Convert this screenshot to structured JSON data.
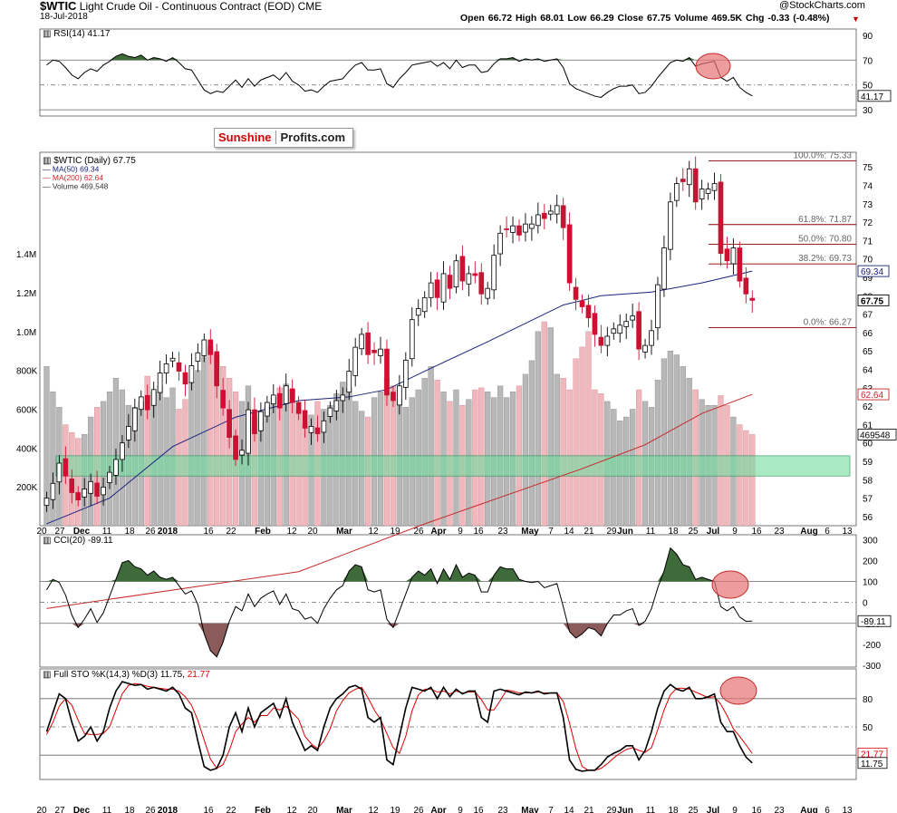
{
  "header": {
    "title_symbol": "$WTIC",
    "title_rest": "Light Crude Oil - Continuous Contract (EOD)",
    "exchange": "CME",
    "date": "18-Jul-2018",
    "quote": "Open 66.72  High 68.01  Low 66.29  Close 67.75  Volume 469.5K  Chg -0.33 (-0.48%)",
    "brand": "@StockCharts.com"
  },
  "logo": {
    "part1": "Sunshine",
    "part2": "Profits.com"
  },
  "colors": {
    "up": "#000000",
    "down": "#cc1133",
    "ma50": "#1a237e",
    "ma200": "#c62828",
    "zone": "#6fdc9f",
    "oscfill_pos": "#3f6b3a",
    "oscfill_neg": "#8b5a5a",
    "highlight": "#e57373"
  },
  "x_axis_labels": [
    "20",
    "27",
    "Dec",
    "11",
    "18",
    "26",
    "2018",
    "16",
    "22",
    "Feb",
    "12",
    "20",
    "Mar",
    "12",
    "19",
    "26",
    "Apr",
    "9",
    "16",
    "23",
    "May",
    "7",
    "14",
    "21",
    "29",
    "Jun",
    "11",
    "18",
    "25",
    "Jul",
    "9",
    "16",
    "23",
    "Aug",
    "6",
    "13"
  ],
  "rsi_panel": {
    "label": "RSI(14) 41.17",
    "axis_labels": [
      "90",
      "70",
      "50",
      "30"
    ],
    "value_tag": "41.17"
  },
  "price_panel": {
    "legend": [
      "$WTIC (Daily) 67.75",
      "MA(50) 69.34",
      "MA(200) 62.64",
      "Volume 469,548"
    ],
    "axis_labels": [
      "75",
      "74",
      "73",
      "72",
      "71",
      "70",
      "69",
      "68",
      "67",
      "66",
      "65",
      "64",
      "63",
      "62",
      "61",
      "60",
      "59",
      "58",
      "57",
      "56"
    ],
    "volume_labels": [
      "1.4M",
      "1.2M",
      "1.0M",
      "800K",
      "600K",
      "400K",
      "200K"
    ],
    "fib_labels": [
      "100.0%: 75.33",
      "61.8%: 71.87",
      "50.0%: 70.80",
      "38.2%: 69.73",
      "0.0%: 66.27"
    ],
    "tags": {
      "ma50": "69.34",
      "close": "67.75",
      "ma200": "62.64",
      "volume": "469548"
    }
  },
  "cci_panel": {
    "label": "CCI(20) -89.11",
    "axis_labels": [
      "300",
      "200",
      "100",
      "0",
      "-100",
      "-200",
      "-300"
    ],
    "value_tag": "-89.11"
  },
  "sto_panel": {
    "label_black": "Full STO %K(14,3) %D(3) 11.75,",
    "label_red": "21.77",
    "axis_labels": [
      "80",
      "50",
      "20"
    ],
    "tags": {
      "k": "11.75",
      "d": "21.77"
    }
  },
  "chart_data": {
    "type": "candlestick",
    "title": "$WTIC Light Crude Oil - Continuous Contract (EOD)",
    "last_bar": {
      "date": "18-Jul-2018",
      "open": 66.72,
      "high": 68.01,
      "low": 66.29,
      "close": 67.75,
      "volume": 469548,
      "change": -0.33,
      "change_pct": -0.48
    },
    "price_ylim": [
      55.5,
      75.8
    ],
    "close_series": [
      57.0,
      57.8,
      58.9,
      58.2,
      57.3,
      56.9,
      57.5,
      57.9,
      57.1,
      57.6,
      58.4,
      59.1,
      60.0,
      60.9,
      61.9,
      62.5,
      61.8,
      62.9,
      63.8,
      64.3,
      64.6,
      63.9,
      63.2,
      64.2,
      64.9,
      65.6,
      64.8,
      63.1,
      61.9,
      60.3,
      59.1,
      59.6,
      61.8,
      60.5,
      61.7,
      62.2,
      62.6,
      61.9,
      63.1,
      62.2,
      61.6,
      60.8,
      60.9,
      60.5,
      61.2,
      61.9,
      62.3,
      62.6,
      63.9,
      65.2,
      65.9,
      64.8,
      64.9,
      65.1,
      62.6,
      62.3,
      63.1,
      64.5,
      66.7,
      67.3,
      67.9,
      68.7,
      67.9,
      69.2,
      68.4,
      69.9,
      68.8,
      69.2,
      69.1,
      68.1,
      68.4,
      70.2,
      71.4,
      71.6,
      71.8,
      71.3,
      71.9,
      71.9,
      72.4,
      72.2,
      72.6,
      72.9,
      71.7,
      68.7,
      67.8,
      67.4,
      66.8,
      65.9,
      65.3,
      65.8,
      66.2,
      66.4,
      66.6,
      66.9,
      65.1,
      65.3,
      66.1,
      68.6,
      70.6,
      73.1,
      74.1,
      74.2,
      74.9,
      73.1,
      73.8,
      73.8,
      74.1,
      70.3,
      69.9,
      70.6,
      68.8,
      68.1,
      67.75
    ],
    "ma50": [
      [
        0,
        55.6
      ],
      [
        10,
        57.0
      ],
      [
        20,
        59.8
      ],
      [
        30,
        61.4
      ],
      [
        40,
        62.3
      ],
      [
        48,
        62.5
      ],
      [
        54,
        62.9
      ],
      [
        60,
        63.9
      ],
      [
        70,
        65.5
      ],
      [
        82,
        67.5
      ],
      [
        88,
        68.0
      ],
      [
        96,
        68.2
      ],
      [
        104,
        68.7
      ],
      [
        112,
        69.34
      ]
    ],
    "ma200": [
      [
        0,
        51.0
      ],
      [
        40,
        53.0
      ],
      [
        60,
        55.6
      ],
      [
        75,
        57.4
      ],
      [
        85,
        58.6
      ],
      [
        95,
        59.9
      ],
      [
        104,
        61.6
      ],
      [
        112,
        62.64
      ]
    ],
    "fibonacci": {
      "100.0%": 75.33,
      "61.8%": 71.87,
      "50.0%": 70.8,
      "38.2%": 69.73,
      "0.0%": 66.27
    },
    "support_zone": [
      58.2,
      59.3
    ],
    "volume_ylim": [
      0,
      1500000
    ],
    "volume": [
      820000,
      690000,
      610000,
      520000,
      480000,
      450000,
      470000,
      560000,
      610000,
      640000,
      690000,
      760000,
      700000,
      620000,
      610000,
      640000,
      770000,
      690000,
      720000,
      660000,
      710000,
      600000,
      650000,
      740000,
      800000,
      870000,
      920000,
      880000,
      820000,
      760000,
      690000,
      640000,
      720000,
      560000,
      590000,
      620000,
      660000,
      710000,
      730000,
      700000,
      600000,
      520000,
      570000,
      640000,
      600000,
      620000,
      680000,
      740000,
      710000,
      640000,
      590000,
      560000,
      660000,
      690000,
      760000,
      720000,
      650000,
      610000,
      660000,
      700000,
      760000,
      820000,
      750000,
      690000,
      640000,
      700000,
      620000,
      650000,
      700000,
      710000,
      690000,
      660000,
      720000,
      660000,
      690000,
      720000,
      780000,
      850000,
      1000000,
      1050000,
      1020000,
      780000,
      760000,
      700000,
      860000,
      920000,
      1000000,
      700000,
      680000,
      640000,
      600000,
      540000,
      560000,
      600000,
      700000,
      640000,
      610000,
      750000,
      860000,
      900000,
      880000,
      820000,
      760000,
      700000,
      650000,
      620000,
      620000,
      670000,
      620000,
      560000,
      520000,
      490000,
      469548
    ],
    "rsi_ylim": [
      25,
      95
    ],
    "rsi": [
      66,
      70,
      69,
      64,
      58,
      55,
      60,
      63,
      61,
      66,
      69,
      73,
      75,
      73,
      72,
      74,
      70,
      72,
      71,
      69,
      72,
      68,
      63,
      62,
      54,
      46,
      43,
      45,
      44,
      49,
      54,
      48,
      55,
      49,
      54,
      56,
      58,
      54,
      60,
      53,
      50,
      45,
      46,
      44,
      49,
      53,
      54,
      55,
      61,
      66,
      68,
      62,
      62,
      63,
      51,
      48,
      55,
      60,
      66,
      67,
      68,
      69,
      65,
      68,
      63,
      70,
      64,
      66,
      66,
      60,
      61,
      67,
      71,
      71,
      72,
      69,
      71,
      70,
      71,
      69,
      70,
      71,
      64,
      51,
      47,
      45,
      43,
      41,
      40,
      44,
      47,
      49,
      49,
      50,
      43,
      44,
      49,
      56,
      62,
      68,
      70,
      69,
      72,
      65,
      67,
      68,
      69,
      56,
      53,
      56,
      48,
      44,
      41.17
    ],
    "cci_ylim": [
      -300,
      300
    ],
    "cci": [
      60,
      110,
      95,
      35,
      -60,
      -120,
      -80,
      -30,
      -95,
      -50,
      30,
      110,
      190,
      200,
      170,
      160,
      130,
      150,
      120,
      110,
      120,
      80,
      40,
      55,
      -10,
      -150,
      -230,
      -260,
      -190,
      -90,
      -20,
      -40,
      40,
      -20,
      20,
      40,
      55,
      -10,
      40,
      -30,
      -40,
      -80,
      -70,
      -100,
      -30,
      20,
      60,
      80,
      150,
      180,
      170,
      60,
      50,
      60,
      -80,
      -120,
      -40,
      40,
      120,
      150,
      130,
      160,
      90,
      160,
      110,
      180,
      120,
      140,
      130,
      50,
      50,
      130,
      170,
      160,
      160,
      110,
      100,
      95,
      100,
      70,
      80,
      90,
      -20,
      -140,
      -170,
      -150,
      -120,
      -130,
      -160,
      -100,
      -60,
      -60,
      -40,
      -30,
      -110,
      -90,
      -30,
      70,
      150,
      260,
      230,
      180,
      170,
      110,
      120,
      110,
      100,
      -20,
      -40,
      -20,
      -70,
      -90,
      -89.11
    ],
    "sto_ylim": [
      0,
      100
    ],
    "sto_k": [
      45,
      65,
      85,
      80,
      55,
      35,
      40,
      50,
      35,
      45,
      70,
      88,
      98,
      96,
      94,
      95,
      90,
      92,
      90,
      88,
      92,
      85,
      70,
      65,
      35,
      8,
      4,
      6,
      20,
      50,
      65,
      45,
      70,
      50,
      65,
      70,
      75,
      60,
      80,
      55,
      40,
      25,
      30,
      25,
      50,
      70,
      80,
      85,
      92,
      94,
      90,
      60,
      55,
      60,
      15,
      10,
      40,
      70,
      92,
      90,
      88,
      92,
      80,
      92,
      82,
      90,
      85,
      88,
      88,
      60,
      55,
      88,
      90,
      88,
      86,
      84,
      87,
      86,
      88,
      85,
      86,
      86,
      60,
      15,
      5,
      3,
      4,
      4,
      10,
      18,
      22,
      25,
      30,
      30,
      15,
      25,
      45,
      70,
      88,
      95,
      90,
      88,
      92,
      80,
      80,
      82,
      85,
      55,
      45,
      45,
      30,
      18,
      11.75
    ],
    "sto_d": [
      42,
      55,
      72,
      80,
      73,
      57,
      43,
      42,
      42,
      43,
      50,
      68,
      85,
      94,
      96,
      95,
      93,
      92,
      91,
      90,
      90,
      88,
      82,
      73,
      57,
      36,
      16,
      6,
      10,
      25,
      45,
      53,
      60,
      55,
      62,
      62,
      70,
      68,
      72,
      65,
      58,
      40,
      32,
      27,
      35,
      48,
      67,
      78,
      86,
      90,
      92,
      81,
      68,
      58,
      43,
      28,
      22,
      40,
      67,
      84,
      90,
      90,
      87,
      88,
      85,
      88,
      86,
      87,
      87,
      79,
      68,
      68,
      78,
      89,
      88,
      86,
      86,
      86,
      87,
      86,
      86,
      86,
      77,
      54,
      27,
      8,
      4,
      4,
      6,
      11,
      17,
      22,
      26,
      28,
      25,
      23,
      28,
      47,
      68,
      84,
      91,
      91,
      90,
      87,
      84,
      81,
      82,
      74,
      62,
      48,
      40,
      31,
      21.77
    ]
  }
}
